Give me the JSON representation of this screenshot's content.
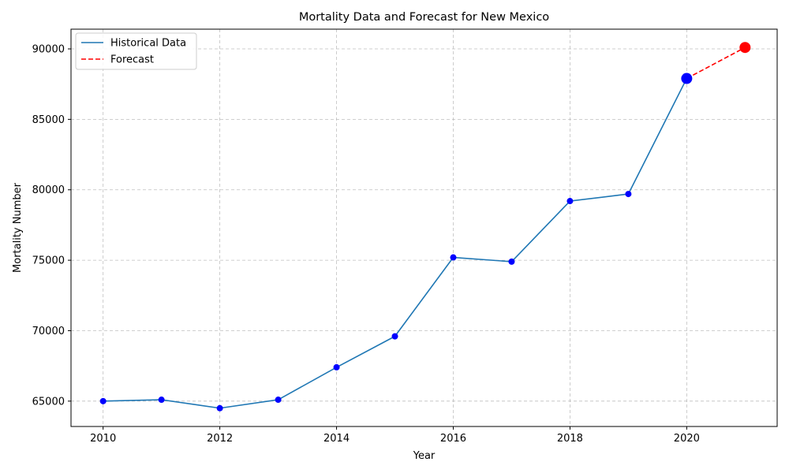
{
  "chart_data": {
    "type": "line",
    "title": "Mortality Data and Forecast for New Mexico",
    "xlabel": "Year",
    "ylabel": "Mortality Number",
    "xlim": [
      2009.45,
      2021.55
    ],
    "ylim": [
      63200,
      91400
    ],
    "xticks": [
      2010,
      2012,
      2014,
      2016,
      2018,
      2020
    ],
    "yticks": [
      65000,
      70000,
      75000,
      80000,
      85000,
      90000
    ],
    "grid": true,
    "legend_position": "top-left",
    "series": [
      {
        "name": "Historical Data",
        "style": "solid",
        "color": "#1f77b4",
        "marker_color": "#0000ff",
        "x": [
          2010,
          2011,
          2012,
          2013,
          2014,
          2015,
          2016,
          2017,
          2018,
          2019,
          2020
        ],
        "y": [
          65000,
          65100,
          64500,
          65100,
          67400,
          69600,
          75200,
          74900,
          79200,
          79700,
          87900
        ]
      },
      {
        "name": "Forecast",
        "style": "dashed",
        "color": "#ff0000",
        "marker_color": "#ff0000",
        "x": [
          2020,
          2021
        ],
        "y": [
          87900,
          90100
        ]
      }
    ],
    "highlights": [
      {
        "x": 2020,
        "y": 87900,
        "color": "#0000ff"
      },
      {
        "x": 2021,
        "y": 90100,
        "color": "#ff0000"
      }
    ]
  }
}
